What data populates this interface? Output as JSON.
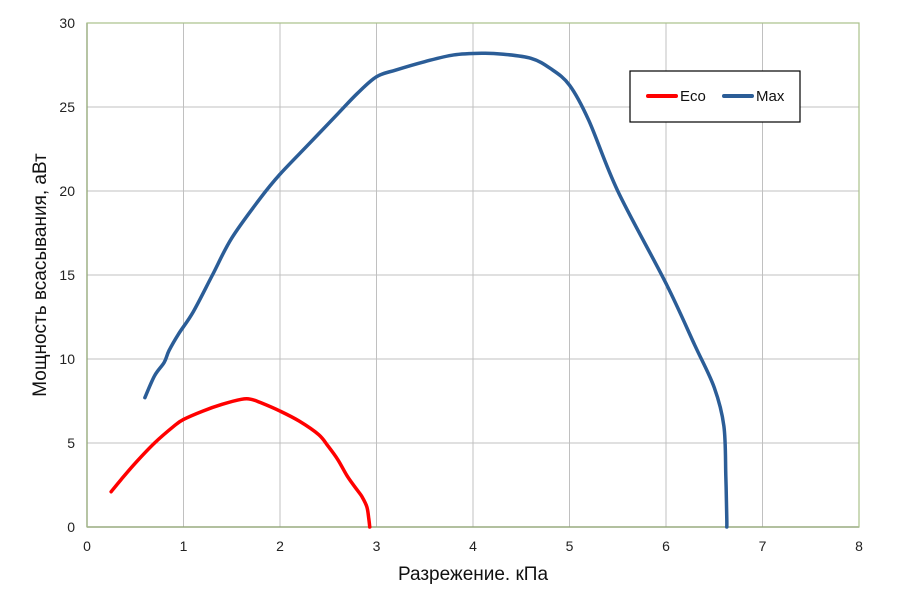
{
  "chart_data": {
    "type": "line",
    "xlabel": "Разрежение. кПа",
    "ylabel": "Мощность всасывания, аВт",
    "xlim": [
      0,
      8
    ],
    "ylim": [
      0,
      30
    ],
    "x_ticks": [
      "0",
      "1",
      "2",
      "3",
      "4",
      "5",
      "6",
      "7",
      "8"
    ],
    "y_ticks": [
      "0",
      "5",
      "10",
      "15",
      "20",
      "25",
      "30"
    ],
    "grid": true,
    "legend_position": "top-right",
    "series": [
      {
        "name": "Eco",
        "color": "#ff0000",
        "x": [
          0.25,
          0.35,
          0.5,
          0.7,
          0.9,
          1.0,
          1.2,
          1.4,
          1.6,
          1.7,
          1.8,
          2.0,
          2.2,
          2.4,
          2.5,
          2.6,
          2.7,
          2.8,
          2.85,
          2.9,
          2.92,
          2.93
        ],
        "y": [
          2.1,
          2.8,
          3.8,
          5.0,
          6.0,
          6.4,
          6.9,
          7.3,
          7.6,
          7.6,
          7.4,
          6.9,
          6.3,
          5.5,
          4.8,
          4.0,
          3.0,
          2.2,
          1.8,
          1.2,
          0.5,
          0.0
        ]
      },
      {
        "name": "Max",
        "color": "#2b5d97",
        "x": [
          0.6,
          0.7,
          0.8,
          0.85,
          0.95,
          1.1,
          1.3,
          1.5,
          1.8,
          2.0,
          2.3,
          2.6,
          2.8,
          3.0,
          3.2,
          3.5,
          3.8,
          4.1,
          4.3,
          4.6,
          4.8,
          5.0,
          5.2,
          5.5,
          6.0,
          6.3,
          6.5,
          6.6,
          6.62,
          6.63,
          6.63
        ],
        "y": [
          7.7,
          9.0,
          9.8,
          10.5,
          11.5,
          12.8,
          15.0,
          17.2,
          19.6,
          21.0,
          22.8,
          24.6,
          25.8,
          26.8,
          27.2,
          27.7,
          28.1,
          28.2,
          28.15,
          27.9,
          27.3,
          26.3,
          24.2,
          20.0,
          14.5,
          10.8,
          8.3,
          6.0,
          3.0,
          0.5,
          0.0
        ]
      }
    ]
  }
}
